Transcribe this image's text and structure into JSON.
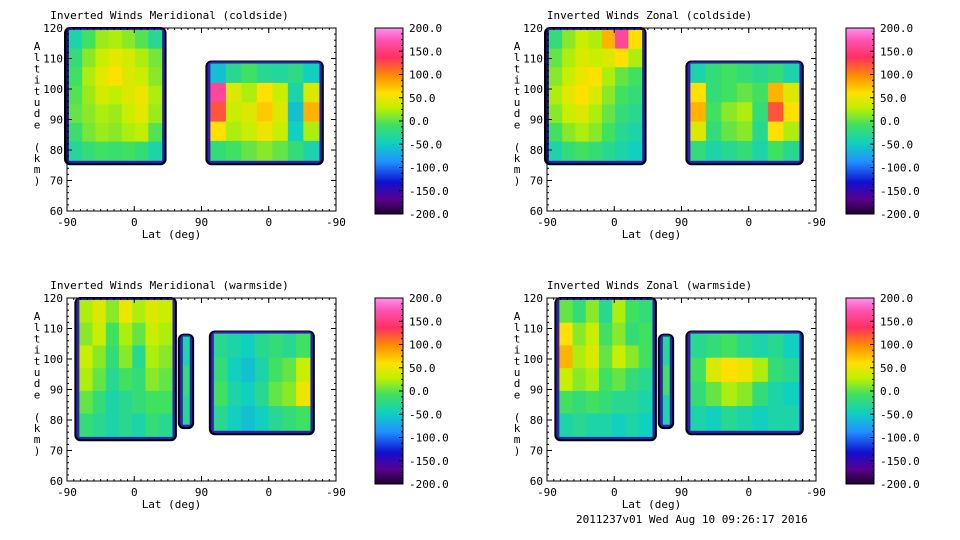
{
  "footer": "2011237v01 Wed Aug 10 09:26:17 2016",
  "chart_data": [
    {
      "type": "heatmap",
      "title": "Inverted Winds Meridional (coldside)",
      "xlabel": "Lat (deg)",
      "ylabel": "Altitude (km)",
      "x_ticks": [
        "-90",
        "0",
        "90",
        "0",
        "-90"
      ],
      "y_ticks": [
        "60",
        "70",
        "80",
        "90",
        "100",
        "110",
        "120"
      ],
      "ylim": [
        60,
        120
      ],
      "colorbar_ticks": [
        "200.0",
        "150.0",
        "100.0",
        "50.0",
        "0.0",
        "-50.0",
        "-100.0",
        "-150.0",
        "-200.0"
      ],
      "colorbar_range": [
        -200,
        200
      ],
      "blocks": [
        {
          "x_range": [
            -90,
            50
          ],
          "y_range": [
            76,
            120
          ],
          "values": [
            [
              -40,
              -10,
              15,
              20,
              10,
              -5,
              -30
            ],
            [
              -20,
              10,
              30,
              45,
              35,
              20,
              5
            ],
            [
              -10,
              20,
              45,
              60,
              40,
              30,
              10
            ],
            [
              -5,
              15,
              35,
              25,
              40,
              50,
              20
            ],
            [
              0,
              10,
              20,
              15,
              30,
              45,
              15
            ],
            [
              -15,
              5,
              15,
              10,
              20,
              25,
              -5
            ],
            [
              -35,
              -20,
              -10,
              -15,
              -10,
              -20,
              -40
            ]
          ]
        },
        {
          "x_range": [
            115,
            278
          ],
          "y_range": [
            76,
            109
          ],
          "values": [
            [
              -60,
              -30,
              -10,
              -30,
              -35,
              -25,
              -50
            ],
            [
              160,
              40,
              20,
              60,
              30,
              -40,
              40
            ],
            [
              120,
              30,
              40,
              70,
              40,
              -60,
              80
            ],
            [
              60,
              20,
              30,
              50,
              30,
              -50,
              20
            ],
            [
              -20,
              -10,
              0,
              10,
              0,
              -20,
              -40
            ]
          ]
        }
      ]
    },
    {
      "type": "heatmap",
      "title": "Inverted Winds Zonal (coldside)",
      "xlabel": "Lat (deg)",
      "ylabel": "Altitude (km)",
      "x_ticks": [
        "-90",
        "0",
        "90",
        "0",
        "-90"
      ],
      "y_ticks": [
        "60",
        "70",
        "80",
        "90",
        "100",
        "110",
        "120"
      ],
      "ylim": [
        60,
        120
      ],
      "colorbar_ticks": [
        "200.0",
        "150.0",
        "100.0",
        "50.0",
        "0.0",
        "-50.0",
        "-100.0",
        "-150.0",
        "-200.0"
      ],
      "colorbar_range": [
        -200,
        200
      ],
      "blocks": [
        {
          "x_range": [
            -90,
            50
          ],
          "y_range": [
            76,
            120
          ],
          "values": [
            [
              -20,
              10,
              30,
              20,
              80,
              160,
              60
            ],
            [
              0,
              20,
              40,
              30,
              40,
              60,
              20
            ],
            [
              10,
              30,
              50,
              60,
              20,
              0,
              -10
            ],
            [
              20,
              45,
              60,
              40,
              10,
              -10,
              -20
            ],
            [
              10,
              30,
              40,
              20,
              0,
              -20,
              -30
            ],
            [
              -10,
              10,
              20,
              10,
              -10,
              -30,
              -40
            ],
            [
              -40,
              -20,
              -10,
              -20,
              -30,
              -40,
              -50
            ]
          ]
        },
        {
          "x_range": [
            115,
            278
          ],
          "y_range": [
            76,
            109
          ],
          "values": [
            [
              -40,
              -20,
              -10,
              -20,
              -30,
              -20,
              -40
            ],
            [
              60,
              -20,
              -10,
              0,
              -10,
              80,
              40
            ],
            [
              80,
              -10,
              10,
              20,
              -20,
              120,
              60
            ],
            [
              40,
              -20,
              0,
              10,
              -30,
              60,
              20
            ],
            [
              -20,
              -40,
              -30,
              -20,
              -40,
              -10,
              -30
            ]
          ]
        }
      ]
    },
    {
      "type": "heatmap",
      "title": "Inverted Winds Meridional (warmside)",
      "xlabel": "Lat (deg)",
      "ylabel": "Altitude (km)",
      "x_ticks": [
        "-90",
        "0",
        "90",
        "0",
        "-90"
      ],
      "y_ticks": [
        "60",
        "70",
        "80",
        "90",
        "100",
        "110",
        "120"
      ],
      "ylim": [
        60,
        120
      ],
      "colorbar_ticks": [
        "200.0",
        "150.0",
        "100.0",
        "50.0",
        "0.0",
        "-50.0",
        "-100.0",
        "-150.0",
        "-200.0"
      ],
      "colorbar_range": [
        -200,
        200
      ],
      "blocks": [
        {
          "x_range": [
            -75,
            65
          ],
          "y_range": [
            74,
            120
          ],
          "values": [
            [
              20,
              40,
              10,
              50,
              20,
              40,
              30
            ],
            [
              10,
              30,
              -10,
              20,
              0,
              30,
              20
            ],
            [
              30,
              10,
              -20,
              10,
              -30,
              20,
              10
            ],
            [
              20,
              0,
              -30,
              -10,
              -20,
              10,
              0
            ],
            [
              0,
              -20,
              -40,
              -30,
              -20,
              -10,
              -10
            ],
            [
              -20,
              -30,
              -40,
              -30,
              -40,
              -20,
              -30
            ]
          ]
        },
        {
          "x_range": [
            75,
            90
          ],
          "y_range": [
            78,
            108
          ],
          "values": [
            [
              -40
            ],
            [
              -20
            ],
            [
              -30
            ]
          ]
        },
        {
          "x_range": [
            120,
            265
          ],
          "y_range": [
            76,
            109
          ],
          "values": [
            [
              -30,
              -40,
              -50,
              -30,
              -20,
              -30,
              -10
            ],
            [
              -20,
              -50,
              -60,
              -40,
              -10,
              0,
              30
            ],
            [
              -10,
              -40,
              -50,
              -30,
              0,
              10,
              50
            ],
            [
              -30,
              -50,
              -60,
              -50,
              -30,
              -20,
              -10
            ]
          ]
        }
      ]
    },
    {
      "type": "heatmap",
      "title": "Inverted Winds Zonal (warmside)",
      "xlabel": "Lat (deg)",
      "ylabel": "Altitude (km)",
      "x_ticks": [
        "-90",
        "0",
        "90",
        "0",
        "-90"
      ],
      "y_ticks": [
        "60",
        "70",
        "80",
        "90",
        "100",
        "110",
        "120"
      ],
      "ylim": [
        60,
        120
      ],
      "colorbar_ticks": [
        "200.0",
        "150.0",
        "100.0",
        "50.0",
        "0.0",
        "-50.0",
        "-100.0",
        "-150.0",
        "-200.0"
      ],
      "colorbar_range": [
        -200,
        200
      ],
      "blocks": [
        {
          "x_range": [
            -75,
            65
          ],
          "y_range": [
            74,
            120
          ],
          "values": [
            [
              0,
              -20,
              10,
              -30,
              20,
              -10,
              -20
            ],
            [
              60,
              10,
              30,
              -10,
              10,
              -20,
              -10
            ],
            [
              80,
              20,
              40,
              0,
              30,
              10,
              -10
            ],
            [
              30,
              10,
              20,
              -10,
              0,
              -20,
              -30
            ],
            [
              -10,
              -20,
              -10,
              -20,
              -30,
              -30,
              -40
            ],
            [
              -40,
              -30,
              -40,
              -40,
              -50,
              -40,
              -50
            ]
          ]
        },
        {
          "x_range": [
            75,
            90
          ],
          "y_range": [
            78,
            108
          ],
          "values": [
            [
              -30
            ],
            [
              -10
            ],
            [
              -40
            ]
          ]
        },
        {
          "x_range": [
            115,
            278
          ],
          "y_range": [
            76,
            109
          ],
          "values": [
            [
              -30,
              -20,
              -10,
              -30,
              -40,
              -30,
              -50
            ],
            [
              -10,
              40,
              60,
              50,
              20,
              -20,
              -30
            ],
            [
              -20,
              0,
              20,
              10,
              -20,
              -40,
              -50
            ],
            [
              -40,
              -50,
              -30,
              -40,
              -50,
              -40,
              -40
            ]
          ]
        }
      ]
    }
  ]
}
